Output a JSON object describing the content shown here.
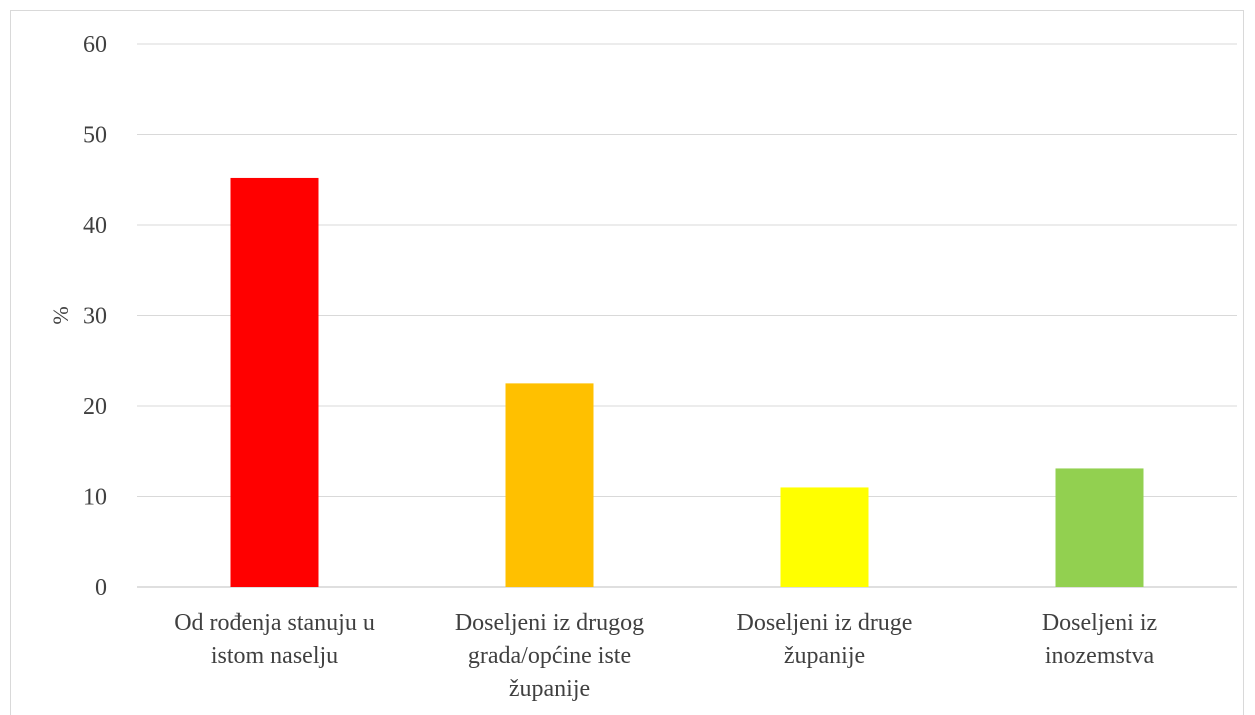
{
  "chart_data": {
    "type": "bar",
    "title": "",
    "xlabel": "",
    "ylabel": "%",
    "ylim": [
      0,
      60
    ],
    "yticks": [
      0,
      10,
      20,
      30,
      40,
      50,
      60
    ],
    "grid": true,
    "categories": [
      [
        "Od rođenja stanuju u",
        "istom naselju"
      ],
      [
        "Doseljeni iz drugog",
        "grada/općine iste",
        "županije"
      ],
      [
        "Doseljeni iz druge",
        "županije"
      ],
      [
        "Doseljeni iz",
        "inozemstva"
      ]
    ],
    "values": [
      45.2,
      22.5,
      11.0,
      13.1
    ],
    "colors": [
      "#ff0000",
      "#ffc000",
      "#ffff00",
      "#92d050"
    ]
  }
}
